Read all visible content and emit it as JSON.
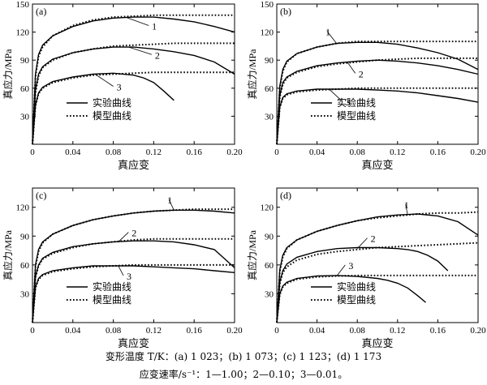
{
  "chart_data": [
    {
      "type": "line",
      "panel_label": "(a)",
      "xlabel": "真应变",
      "ylabel": "真应力/MPa",
      "xlim": [
        0,
        0.2
      ],
      "ylim": [
        0,
        150
      ],
      "xticks": [
        "0",
        "0.04",
        "0.08",
        "0.12",
        "0.16",
        "0.20"
      ],
      "yticks": [
        "30",
        "60",
        "90",
        "120",
        "150"
      ],
      "curve_labels": [
        "1",
        "2",
        "3"
      ],
      "series": [
        {
          "name": "实验曲线",
          "style": "solid",
          "curve": "1",
          "x": [
            0,
            0.003,
            0.006,
            0.01,
            0.02,
            0.04,
            0.06,
            0.08,
            0.1,
            0.12,
            0.14,
            0.16,
            0.18,
            0.2
          ],
          "y": [
            0,
            75,
            96,
            106,
            116,
            126,
            132,
            135,
            136,
            136,
            134,
            131,
            126,
            120
          ]
        },
        {
          "name": "模型曲线",
          "style": "dotted",
          "curve": "1",
          "x": [
            0,
            0.003,
            0.006,
            0.01,
            0.02,
            0.04,
            0.06,
            0.08,
            0.1,
            0.12,
            0.14,
            0.16,
            0.18,
            0.2
          ],
          "y": [
            0,
            72,
            94,
            104,
            116,
            127,
            133,
            136,
            137,
            138,
            138,
            138,
            138,
            138
          ]
        },
        {
          "name": "实验曲线",
          "style": "solid",
          "curve": "2",
          "x": [
            0,
            0.003,
            0.006,
            0.01,
            0.02,
            0.04,
            0.06,
            0.08,
            0.1,
            0.12,
            0.14,
            0.16,
            0.18,
            0.2
          ],
          "y": [
            0,
            58,
            75,
            83,
            91,
            98,
            102,
            104,
            104,
            102,
            99,
            95,
            88,
            75
          ]
        },
        {
          "name": "模型曲线",
          "style": "dotted",
          "curve": "2",
          "x": [
            0,
            0.003,
            0.006,
            0.01,
            0.02,
            0.04,
            0.06,
            0.08,
            0.1,
            0.12,
            0.14,
            0.16,
            0.18,
            0.2
          ],
          "y": [
            0,
            55,
            73,
            82,
            90,
            98,
            102,
            105,
            106,
            107,
            108,
            108,
            108,
            108
          ]
        },
        {
          "name": "实验曲线",
          "style": "solid",
          "curve": "3",
          "x": [
            0,
            0.003,
            0.006,
            0.01,
            0.02,
            0.04,
            0.06,
            0.08,
            0.1,
            0.11,
            0.12,
            0.13,
            0.14
          ],
          "y": [
            0,
            42,
            55,
            61,
            67,
            72,
            75,
            76,
            74,
            71,
            66,
            57,
            47
          ]
        },
        {
          "name": "模型曲线",
          "style": "dotted",
          "curve": "3",
          "x": [
            0,
            0.003,
            0.006,
            0.01,
            0.02,
            0.04,
            0.06,
            0.08,
            0.1,
            0.12,
            0.14,
            0.16,
            0.18,
            0.2
          ],
          "y": [
            0,
            41,
            54,
            60,
            66,
            71,
            74,
            75,
            76,
            77,
            77,
            77,
            77,
            77
          ]
        }
      ],
      "labels": [
        {
          "text": "1",
          "x": 0.092,
          "y": 136,
          "lx": 0.115,
          "ly": 127
        },
        {
          "text": "2",
          "x": 0.095,
          "y": 104,
          "lx": 0.118,
          "ly": 96
        },
        {
          "text": "3",
          "x": 0.062,
          "y": 75,
          "lx": 0.08,
          "ly": 62
        }
      ]
    },
    {
      "type": "line",
      "panel_label": "(b)",
      "xlabel": "真应变",
      "ylabel": "真应力/MPa",
      "xlim": [
        0,
        0.2
      ],
      "ylim": [
        0,
        150
      ],
      "xticks": [
        "0",
        "0.04",
        "0.08",
        "0.12",
        "0.16",
        "0.20"
      ],
      "yticks": [
        "30",
        "60",
        "90",
        "120",
        "150"
      ],
      "curve_labels": [
        "1",
        "2",
        "3"
      ],
      "series": [
        {
          "name": "实验曲线",
          "style": "solid",
          "curve": "1",
          "x": [
            0,
            0.003,
            0.006,
            0.01,
            0.02,
            0.04,
            0.06,
            0.08,
            0.1,
            0.12,
            0.14,
            0.16,
            0.18,
            0.2
          ],
          "y": [
            0,
            62,
            80,
            89,
            97,
            104,
            108,
            109,
            109,
            107,
            103,
            98,
            91,
            80
          ]
        },
        {
          "name": "模型曲线",
          "style": "dotted",
          "curve": "1",
          "x": [
            0,
            0.003,
            0.006,
            0.01,
            0.02,
            0.04,
            0.06,
            0.08,
            0.1,
            0.12,
            0.14,
            0.16,
            0.18,
            0.2
          ],
          "y": [
            0,
            60,
            78,
            88,
            97,
            104,
            108,
            110,
            110,
            110,
            110,
            110,
            110,
            110
          ]
        },
        {
          "name": "实验曲线",
          "style": "solid",
          "curve": "2",
          "x": [
            0,
            0.003,
            0.006,
            0.01,
            0.02,
            0.04,
            0.06,
            0.08,
            0.1,
            0.12,
            0.14,
            0.16,
            0.18,
            0.2
          ],
          "y": [
            0,
            52,
            66,
            72,
            78,
            84,
            87,
            89,
            90,
            89,
            87,
            84,
            80,
            75
          ]
        },
        {
          "name": "模型曲线",
          "style": "dotted",
          "curve": "2",
          "x": [
            0,
            0.003,
            0.006,
            0.01,
            0.02,
            0.04,
            0.06,
            0.08,
            0.1,
            0.12,
            0.14,
            0.16,
            0.18,
            0.2
          ],
          "y": [
            0,
            50,
            64,
            71,
            77,
            83,
            86,
            88,
            90,
            91,
            92,
            92,
            92,
            92
          ]
        },
        {
          "name": "实验曲线",
          "style": "solid",
          "curve": "3",
          "x": [
            0,
            0.003,
            0.006,
            0.01,
            0.02,
            0.04,
            0.06,
            0.08,
            0.1,
            0.12,
            0.14,
            0.16,
            0.18,
            0.2
          ],
          "y": [
            0,
            40,
            50,
            54,
            57,
            59,
            59,
            59,
            58,
            57,
            55,
            52,
            49,
            45
          ]
        },
        {
          "name": "模型曲线",
          "style": "dotted",
          "curve": "3",
          "x": [
            0,
            0.003,
            0.006,
            0.01,
            0.02,
            0.04,
            0.06,
            0.08,
            0.1,
            0.12,
            0.14,
            0.16,
            0.18,
            0.2
          ],
          "y": [
            0,
            39,
            49,
            53,
            56,
            58,
            59,
            60,
            60,
            60,
            60,
            60,
            60,
            60
          ]
        }
      ],
      "labels": [
        {
          "text": "1",
          "x": 0.06,
          "y": 107,
          "lx": 0.05,
          "ly": 121
        },
        {
          "text": "2",
          "x": 0.07,
          "y": 88,
          "lx": 0.078,
          "ly": 76
        },
        {
          "text": "3",
          "x": 0.052,
          "y": 59,
          "lx": 0.065,
          "ly": 46
        }
      ]
    },
    {
      "type": "line",
      "panel_label": "(c)",
      "xlabel": "真应变",
      "ylabel": "真应力/MPa",
      "xlim": [
        0,
        0.2
      ],
      "ylim": [
        0,
        140
      ],
      "xticks": [
        "0",
        "0.04",
        "0.08",
        "0.12",
        "0.16",
        "0.20"
      ],
      "yticks": [
        "30",
        "60",
        "90",
        "120"
      ],
      "curve_labels": [
        "1",
        "2",
        "3"
      ],
      "series": [
        {
          "name": "实验曲线",
          "style": "solid",
          "curve": "1",
          "x": [
            0,
            0.003,
            0.006,
            0.01,
            0.02,
            0.04,
            0.06,
            0.08,
            0.1,
            0.12,
            0.14,
            0.16,
            0.18,
            0.2
          ],
          "y": [
            0,
            60,
            76,
            84,
            92,
            101,
            107,
            111,
            114,
            116,
            117,
            117,
            116,
            114
          ]
        },
        {
          "name": "模型曲线",
          "style": "dotted",
          "curve": "1",
          "x": [
            0,
            0.003,
            0.006,
            0.01,
            0.02,
            0.04,
            0.06,
            0.08,
            0.1,
            0.12,
            0.14,
            0.16,
            0.18,
            0.2
          ],
          "y": [
            0,
            58,
            74,
            83,
            92,
            101,
            107,
            111,
            114,
            116,
            117,
            118,
            118,
            118
          ]
        },
        {
          "name": "实验曲线",
          "style": "solid",
          "curve": "2",
          "x": [
            0,
            0.003,
            0.006,
            0.01,
            0.02,
            0.04,
            0.06,
            0.08,
            0.1,
            0.12,
            0.14,
            0.16,
            0.18,
            0.2
          ],
          "y": [
            0,
            48,
            60,
            67,
            73,
            79,
            82,
            84,
            85,
            85,
            84,
            81,
            76,
            57
          ]
        },
        {
          "name": "模型曲线",
          "style": "dotted",
          "curve": "2",
          "x": [
            0,
            0.003,
            0.006,
            0.01,
            0.02,
            0.04,
            0.06,
            0.08,
            0.1,
            0.12,
            0.14,
            0.16,
            0.18,
            0.2
          ],
          "y": [
            0,
            47,
            59,
            66,
            72,
            78,
            82,
            84,
            86,
            87,
            87,
            87,
            87,
            87
          ]
        },
        {
          "name": "实验曲线",
          "style": "solid",
          "curve": "3",
          "x": [
            0,
            0.003,
            0.006,
            0.01,
            0.02,
            0.04,
            0.06,
            0.08,
            0.1,
            0.12,
            0.14,
            0.16,
            0.18,
            0.2
          ],
          "y": [
            0,
            37,
            46,
            50,
            54,
            57,
            59,
            59,
            59,
            58,
            57,
            56,
            54,
            52
          ]
        },
        {
          "name": "模型曲线",
          "style": "dotted",
          "curve": "3",
          "x": [
            0,
            0.003,
            0.006,
            0.01,
            0.02,
            0.04,
            0.06,
            0.08,
            0.1,
            0.12,
            0.14,
            0.16,
            0.18,
            0.2
          ],
          "y": [
            0,
            36,
            45,
            49,
            53,
            56,
            58,
            59,
            60,
            60,
            60,
            60,
            60,
            60
          ]
        }
      ],
      "labels": [
        {
          "text": "1",
          "x": 0.14,
          "y": 117,
          "lx": 0.135,
          "ly": 128
        },
        {
          "text": "2",
          "x": 0.085,
          "y": 84,
          "lx": 0.095,
          "ly": 94
        },
        {
          "text": "3",
          "x": 0.085,
          "y": 59,
          "lx": 0.09,
          "ly": 49
        }
      ]
    },
    {
      "type": "line",
      "panel_label": "(d)",
      "xlabel": "真应变",
      "ylabel": "真应力/MPa",
      "xlim": [
        0,
        0.2
      ],
      "ylim": [
        0,
        140
      ],
      "xticks": [
        "0",
        "0.04",
        "0.08",
        "0.12",
        "0.16",
        "0.20"
      ],
      "yticks": [
        "30",
        "60",
        "90",
        "120"
      ],
      "curve_labels": [
        "1",
        "2",
        "3"
      ],
      "series": [
        {
          "name": "实验曲线",
          "style": "solid",
          "curve": "1",
          "x": [
            0,
            0.003,
            0.006,
            0.01,
            0.02,
            0.04,
            0.06,
            0.08,
            0.1,
            0.12,
            0.14,
            0.16,
            0.18,
            0.2
          ],
          "y": [
            0,
            55,
            70,
            78,
            86,
            95,
            101,
            106,
            110,
            112,
            113,
            111,
            105,
            91
          ]
        },
        {
          "name": "模型曲线",
          "style": "dotted",
          "curve": "1",
          "x": [
            0,
            0.003,
            0.006,
            0.01,
            0.02,
            0.04,
            0.06,
            0.08,
            0.1,
            0.12,
            0.14,
            0.16,
            0.18,
            0.2
          ],
          "y": [
            0,
            53,
            68,
            77,
            86,
            95,
            101,
            106,
            109,
            111,
            113,
            114,
            114,
            115
          ]
        },
        {
          "name": "实验曲线",
          "style": "solid",
          "curve": "2",
          "x": [
            0,
            0.003,
            0.006,
            0.01,
            0.02,
            0.04,
            0.06,
            0.08,
            0.1,
            0.12,
            0.13,
            0.14,
            0.15,
            0.16,
            0.17
          ],
          "y": [
            0,
            42,
            54,
            61,
            68,
            74,
            77,
            78,
            78,
            77,
            76,
            74,
            70,
            64,
            54
          ]
        },
        {
          "name": "模型曲线",
          "style": "dotted",
          "curve": "2",
          "x": [
            0,
            0.003,
            0.006,
            0.01,
            0.02,
            0.04,
            0.06,
            0.08,
            0.1,
            0.12,
            0.14,
            0.16,
            0.18,
            0.2
          ],
          "y": [
            0,
            40,
            52,
            58,
            65,
            71,
            74,
            76,
            78,
            79,
            80,
            81,
            82,
            83
          ]
        },
        {
          "name": "实验曲线",
          "style": "solid",
          "curve": "3",
          "x": [
            0,
            0.003,
            0.006,
            0.01,
            0.02,
            0.04,
            0.06,
            0.08,
            0.1,
            0.11,
            0.12,
            0.13,
            0.14,
            0.148
          ],
          "y": [
            0,
            30,
            38,
            42,
            46,
            48.5,
            49,
            48,
            46,
            44,
            41,
            36,
            28,
            21
          ]
        },
        {
          "name": "模型曲线",
          "style": "dotted",
          "curve": "3",
          "x": [
            0,
            0.003,
            0.006,
            0.01,
            0.02,
            0.04,
            0.06,
            0.08,
            0.1,
            0.12,
            0.14,
            0.16,
            0.18,
            0.2
          ],
          "y": [
            0,
            29,
            37,
            41,
            45,
            47.5,
            48.5,
            49,
            49,
            49,
            49,
            49,
            49,
            49
          ]
        }
      ],
      "labels": [
        {
          "text": "1",
          "x": 0.13,
          "y": 112,
          "lx": 0.128,
          "ly": 123
        },
        {
          "text": "2",
          "x": 0.08,
          "y": 77,
          "lx": 0.09,
          "ly": 88
        },
        {
          "text": "3",
          "x": 0.06,
          "y": 49,
          "lx": 0.068,
          "ly": 60
        }
      ]
    }
  ],
  "legend": {
    "experimental": "实验曲线",
    "model": "模型曲线"
  },
  "caption": {
    "line1": "变形温度 T/K：(a) 1 023；(b) 1 073；(c) 1 123；(d) 1 173",
    "line2": "应变速率/s⁻¹：1—1.00；2—0.10；3—0.01。"
  }
}
